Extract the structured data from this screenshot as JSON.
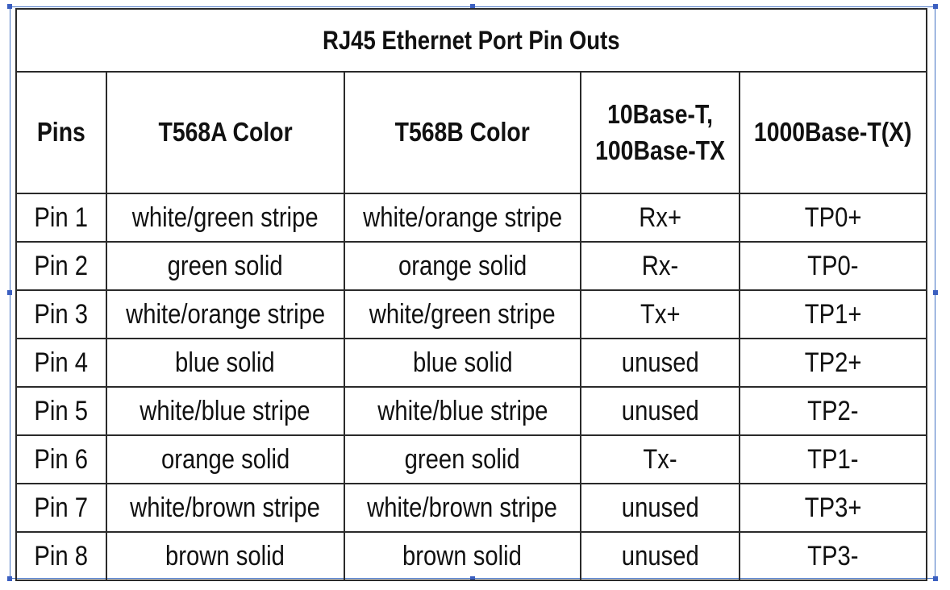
{
  "table": {
    "title": "RJ45 Ethernet Port Pin Outs",
    "headers": [
      "Pins",
      "T568A Color",
      "T568B Color",
      "10Base-T,\n100Base-TX",
      "1000Base-T(X)"
    ],
    "rows": [
      [
        "Pin 1",
        "white/green stripe",
        "white/orange stripe",
        "Rx+",
        "TP0+"
      ],
      [
        "Pin 2",
        "green solid",
        "orange solid",
        "Rx-",
        "TP0-"
      ],
      [
        "Pin 3",
        "white/orange stripe",
        "white/green stripe",
        "Tx+",
        "TP1+"
      ],
      [
        "Pin 4",
        "blue solid",
        "blue solid",
        "unused",
        "TP2+"
      ],
      [
        "Pin 5",
        "white/blue stripe",
        "white/blue stripe",
        "unused",
        "TP2-"
      ],
      [
        "Pin 6",
        "orange solid",
        "green solid",
        "Tx-",
        "TP1-"
      ],
      [
        "Pin 7",
        "white/brown stripe",
        "white/brown stripe",
        "unused",
        "TP3+"
      ],
      [
        "Pin 8",
        "brown solid",
        "brown solid",
        "unused",
        "TP3-"
      ]
    ]
  },
  "colors": {
    "selection": "#4472c4",
    "border": "#2a2a2a"
  }
}
